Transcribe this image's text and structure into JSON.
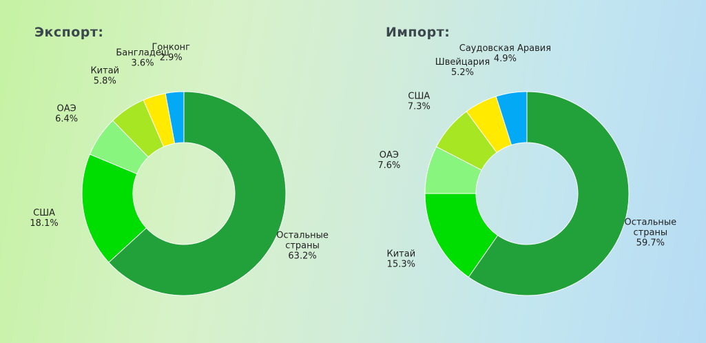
{
  "chart_data": [
    {
      "type": "pie",
      "title": "Экспорт:",
      "hole": 0.5,
      "slices": [
        {
          "name": "Остальные страны",
          "value": 63.2,
          "label_lines": [
            "Остальные",
            "страны",
            "63.2%"
          ],
          "color": "#22a03a"
        },
        {
          "name": "США",
          "value": 18.1,
          "label_lines": [
            "США",
            "18.1%"
          ],
          "color": "#00dd00"
        },
        {
          "name": "ОАЭ",
          "value": 6.4,
          "label_lines": [
            "ОАЭ",
            "6.4%"
          ],
          "color": "#88f57e"
        },
        {
          "name": "Китай",
          "value": 5.8,
          "label_lines": [
            "Китай",
            "5.8%"
          ],
          "color": "#a6e622"
        },
        {
          "name": "Бангладеш",
          "value": 3.6,
          "label_lines": [
            "Бангладеш",
            "3.6%"
          ],
          "color": "#ffea00"
        },
        {
          "name": "Гонконг",
          "value": 2.9,
          "label_lines": [
            "Гонконг",
            "2.9%"
          ],
          "color": "#03a9f4"
        }
      ]
    },
    {
      "type": "pie",
      "title": "Импорт:",
      "hole": 0.5,
      "slices": [
        {
          "name": "Остальные страны",
          "value": 59.7,
          "label_lines": [
            "Остальные",
            "страны",
            "59.7%"
          ],
          "color": "#22a03a"
        },
        {
          "name": "Китай",
          "value": 15.3,
          "label_lines": [
            "Китай",
            "15.3%"
          ],
          "color": "#00dd00"
        },
        {
          "name": "ОАЭ",
          "value": 7.6,
          "label_lines": [
            "ОАЭ",
            "7.6%"
          ],
          "color": "#88f57e"
        },
        {
          "name": "США",
          "value": 7.3,
          "label_lines": [
            "США",
            "7.3%"
          ],
          "color": "#a6e622"
        },
        {
          "name": "Швейцария",
          "value": 5.2,
          "label_lines": [
            "Швейцария",
            "5.2%"
          ],
          "color": "#ffea00"
        },
        {
          "name": "Саудовская Аравия",
          "value": 4.9,
          "label_lines": [
            "Саудовская Аравия",
            "4.9%"
          ],
          "color": "#03a9f4"
        }
      ]
    }
  ]
}
